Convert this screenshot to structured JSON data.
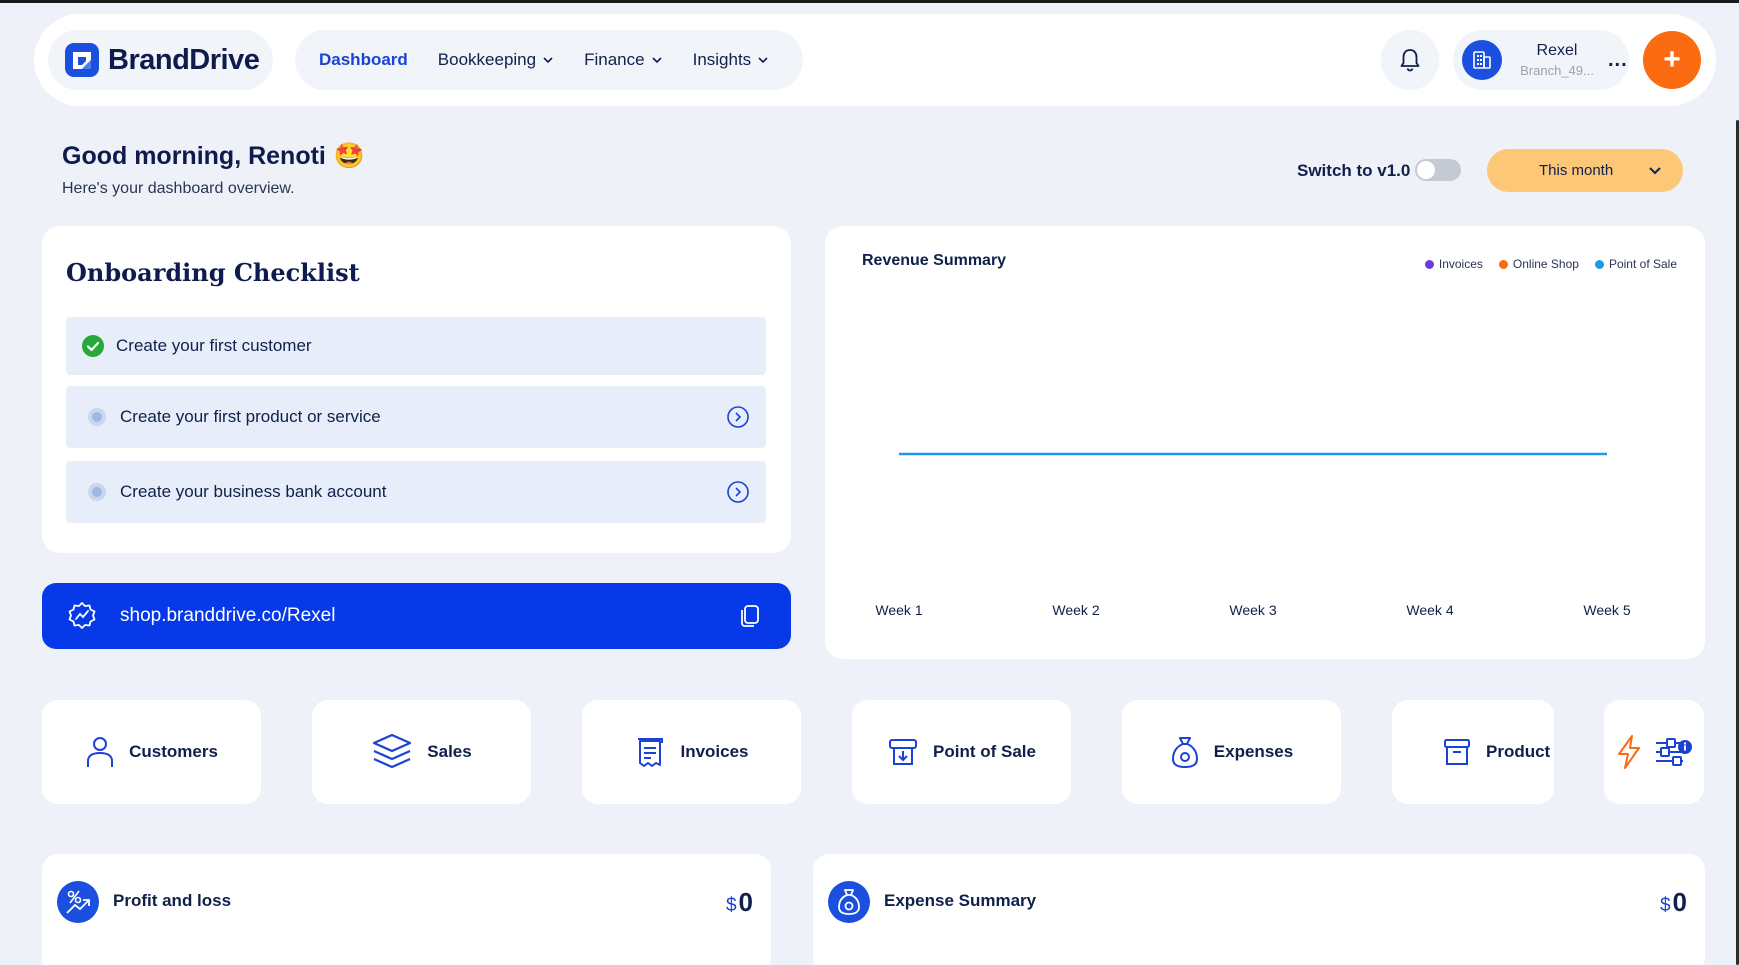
{
  "header": {
    "brand": "BrandDrive",
    "nav": [
      {
        "label": "Dashboard",
        "active": true,
        "dropdown": false
      },
      {
        "label": "Bookkeeping",
        "active": false,
        "dropdown": true
      },
      {
        "label": "Finance",
        "active": false,
        "dropdown": true
      },
      {
        "label": "Insights",
        "active": false,
        "dropdown": true
      }
    ],
    "account": {
      "name": "Rexel",
      "branch": "Branch_49..."
    },
    "more_label": "...",
    "plus_label": "+"
  },
  "greeting": {
    "title": "Good morning, Renoti",
    "emoji": "🤩",
    "subtitle": "Here's your dashboard overview."
  },
  "controls": {
    "switch_label": "Switch to v1.0",
    "switch_on": false,
    "period": "This month"
  },
  "onboarding": {
    "title": "Onboarding Checklist",
    "items": [
      {
        "label": "Create your first customer",
        "done": true
      },
      {
        "label": "Create your first product or service",
        "done": false
      },
      {
        "label": "Create your business bank account",
        "done": false
      }
    ]
  },
  "shop": {
    "url": "shop.branddrive.co/Rexel"
  },
  "revenue": {
    "title": "Revenue Summary",
    "legend": [
      {
        "name": "Invoices",
        "color": "#6a3be4"
      },
      {
        "name": "Online Shop",
        "color": "#fa6b12"
      },
      {
        "name": "Point of Sale",
        "color": "#1c9ae8"
      }
    ]
  },
  "chart_data": {
    "type": "line",
    "title": "Revenue Summary",
    "categories": [
      "Week 1",
      "Week 2",
      "Week 3",
      "Week 4",
      "Week 5"
    ],
    "series": [
      {
        "name": "Point of Sale",
        "color": "#1c9ae8",
        "values": [
          0,
          0,
          0,
          0,
          0
        ]
      }
    ],
    "legend_position": "top-right",
    "grid": false
  },
  "tiles": [
    {
      "label": "Customers",
      "icon": "user-icon"
    },
    {
      "label": "Sales",
      "icon": "layers-icon"
    },
    {
      "label": "Invoices",
      "icon": "receipt-icon"
    },
    {
      "label": "Point of Sale",
      "icon": "pos-terminal-icon"
    },
    {
      "label": "Expenses",
      "icon": "money-bag-icon"
    },
    {
      "label": "Product",
      "icon": "box-icon"
    }
  ],
  "bottom": {
    "profit": {
      "title": "Profit and loss",
      "currency": "$",
      "value": "0"
    },
    "expense": {
      "title": "Expense Summary",
      "currency": "$",
      "value": "0"
    }
  },
  "colors": {
    "brand_blue": "#0739e8",
    "accent_orange": "#fa6b12",
    "period_yellow": "#fcc777",
    "page_bg": "#eef2f8"
  }
}
